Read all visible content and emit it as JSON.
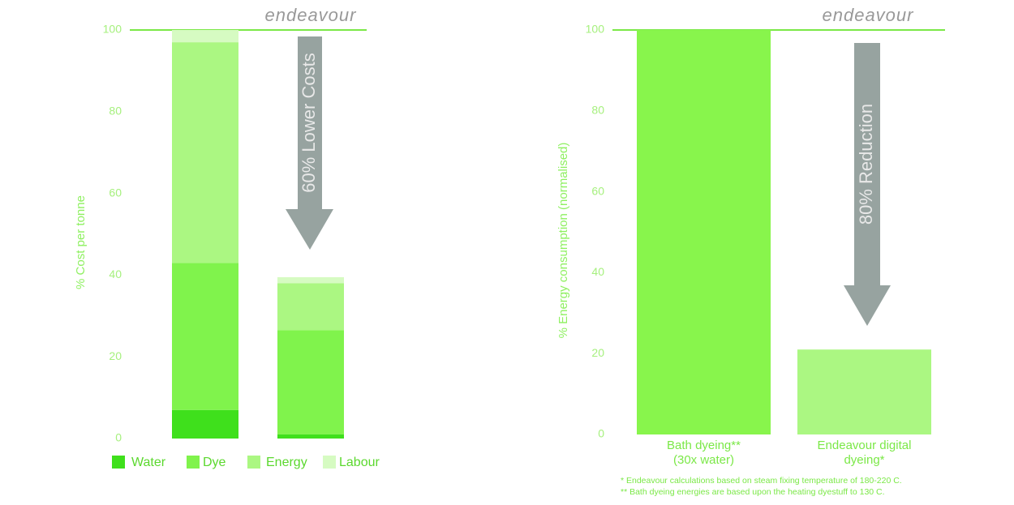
{
  "chart_data": [
    {
      "type": "stacked_bar",
      "brand": "endeavour",
      "ylabel": "% Cost  per tonne",
      "annotation": "60% Lower Costs",
      "categories": [
        null,
        null
      ],
      "series": [
        {
          "name": "Water",
          "color": "#3fe01c",
          "values": [
            7,
            1
          ]
        },
        {
          "name": "Dye",
          "color": "#80f34c",
          "values": [
            36,
            25.5
          ]
        },
        {
          "name": "Energy",
          "color": "#abf782",
          "values": [
            54,
            11.5
          ]
        },
        {
          "name": "Labour",
          "color": "#d6fbc2",
          "values": [
            3,
            1.5
          ]
        }
      ],
      "ylim": [
        0,
        100
      ],
      "yticks": [
        0,
        20,
        40,
        60,
        80,
        100
      ],
      "legend": "bottom"
    },
    {
      "type": "bar",
      "brand": "endeavour",
      "ylabel": "% Energy consumption  (normalised)",
      "annotation": "80% Reduction",
      "categories": [
        "Bath dyeing**\n(30x water)",
        "Endeavour digital\ndyeing*"
      ],
      "values": [
        100,
        21
      ],
      "colors": [
        "#88f54c",
        "#abf782"
      ],
      "ylim": [
        0,
        100
      ],
      "yticks": [
        0,
        20,
        40,
        60,
        80,
        100
      ],
      "footnotes": [
        "* Endeavour calculations based on steam fixing temperature of 180-220 C.",
        "** Bath dyeing energies are based upon the heating dyestuff to 130 C."
      ]
    }
  ]
}
